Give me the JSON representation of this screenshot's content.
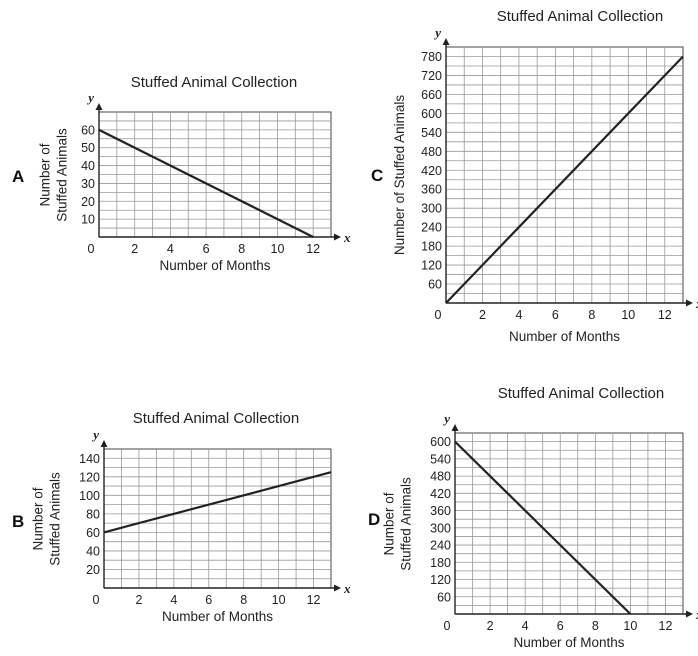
{
  "chart_data": [
    {
      "letter": "A",
      "type": "line",
      "title": "Stuffed Animal Collection",
      "xlabel": "Number of Months",
      "ylabel_lines": [
        "Number of",
        "Stuffed Animals"
      ],
      "xvar": "x",
      "yvar": "y",
      "origin_label": "0",
      "xlim": [
        0,
        13
      ],
      "ylim": [
        0,
        70
      ],
      "xticks": [
        2,
        4,
        6,
        8,
        10,
        12
      ],
      "yticks": [
        10,
        20,
        30,
        40,
        50,
        60
      ],
      "grid": true,
      "series": [
        {
          "x": [
            0,
            12
          ],
          "y": [
            60,
            0
          ]
        }
      ]
    },
    {
      "letter": "B",
      "type": "line",
      "title": "Stuffed Animal Collection",
      "xlabel": "Number of Months",
      "ylabel_lines": [
        "Number of",
        "Stuffed Animals"
      ],
      "xvar": "x",
      "yvar": "y",
      "origin_label": "0",
      "xlim": [
        0,
        13
      ],
      "ylim": [
        0,
        150
      ],
      "xticks": [
        2,
        4,
        6,
        8,
        10,
        12
      ],
      "yticks": [
        20,
        40,
        60,
        80,
        100,
        120,
        140
      ],
      "grid": true,
      "series": [
        {
          "x": [
            0,
            13
          ],
          "y": [
            60,
            125
          ]
        }
      ]
    },
    {
      "letter": "C",
      "type": "line",
      "title": "Stuffed Animal Collection",
      "xlabel": "Number of Months",
      "ylabel_lines": [
        "Number of Stuffed Animals"
      ],
      "xvar": "x",
      "yvar": "y",
      "origin_label": "0",
      "xlim": [
        0,
        13
      ],
      "ylim": [
        0,
        810
      ],
      "xticks": [
        2,
        4,
        6,
        8,
        10,
        12
      ],
      "yticks": [
        60,
        120,
        180,
        240,
        300,
        360,
        420,
        480,
        540,
        600,
        660,
        720,
        780
      ],
      "grid": true,
      "series": [
        {
          "x": [
            0,
            13
          ],
          "y": [
            0,
            780
          ]
        }
      ]
    },
    {
      "letter": "D",
      "type": "line",
      "title": "Stuffed Animal Collection",
      "xlabel": "Number of Months",
      "ylabel_lines": [
        "Number of",
        "Stuffed Animals"
      ],
      "xvar": "x",
      "yvar": "y",
      "origin_label": "0",
      "xlim": [
        0,
        13
      ],
      "ylim": [
        0,
        630
      ],
      "xticks": [
        2,
        4,
        6,
        8,
        10,
        12
      ],
      "yticks": [
        60,
        120,
        180,
        240,
        300,
        360,
        420,
        480,
        540,
        600
      ],
      "grid": true,
      "series": [
        {
          "x": [
            0,
            10
          ],
          "y": [
            600,
            0
          ]
        }
      ]
    }
  ]
}
